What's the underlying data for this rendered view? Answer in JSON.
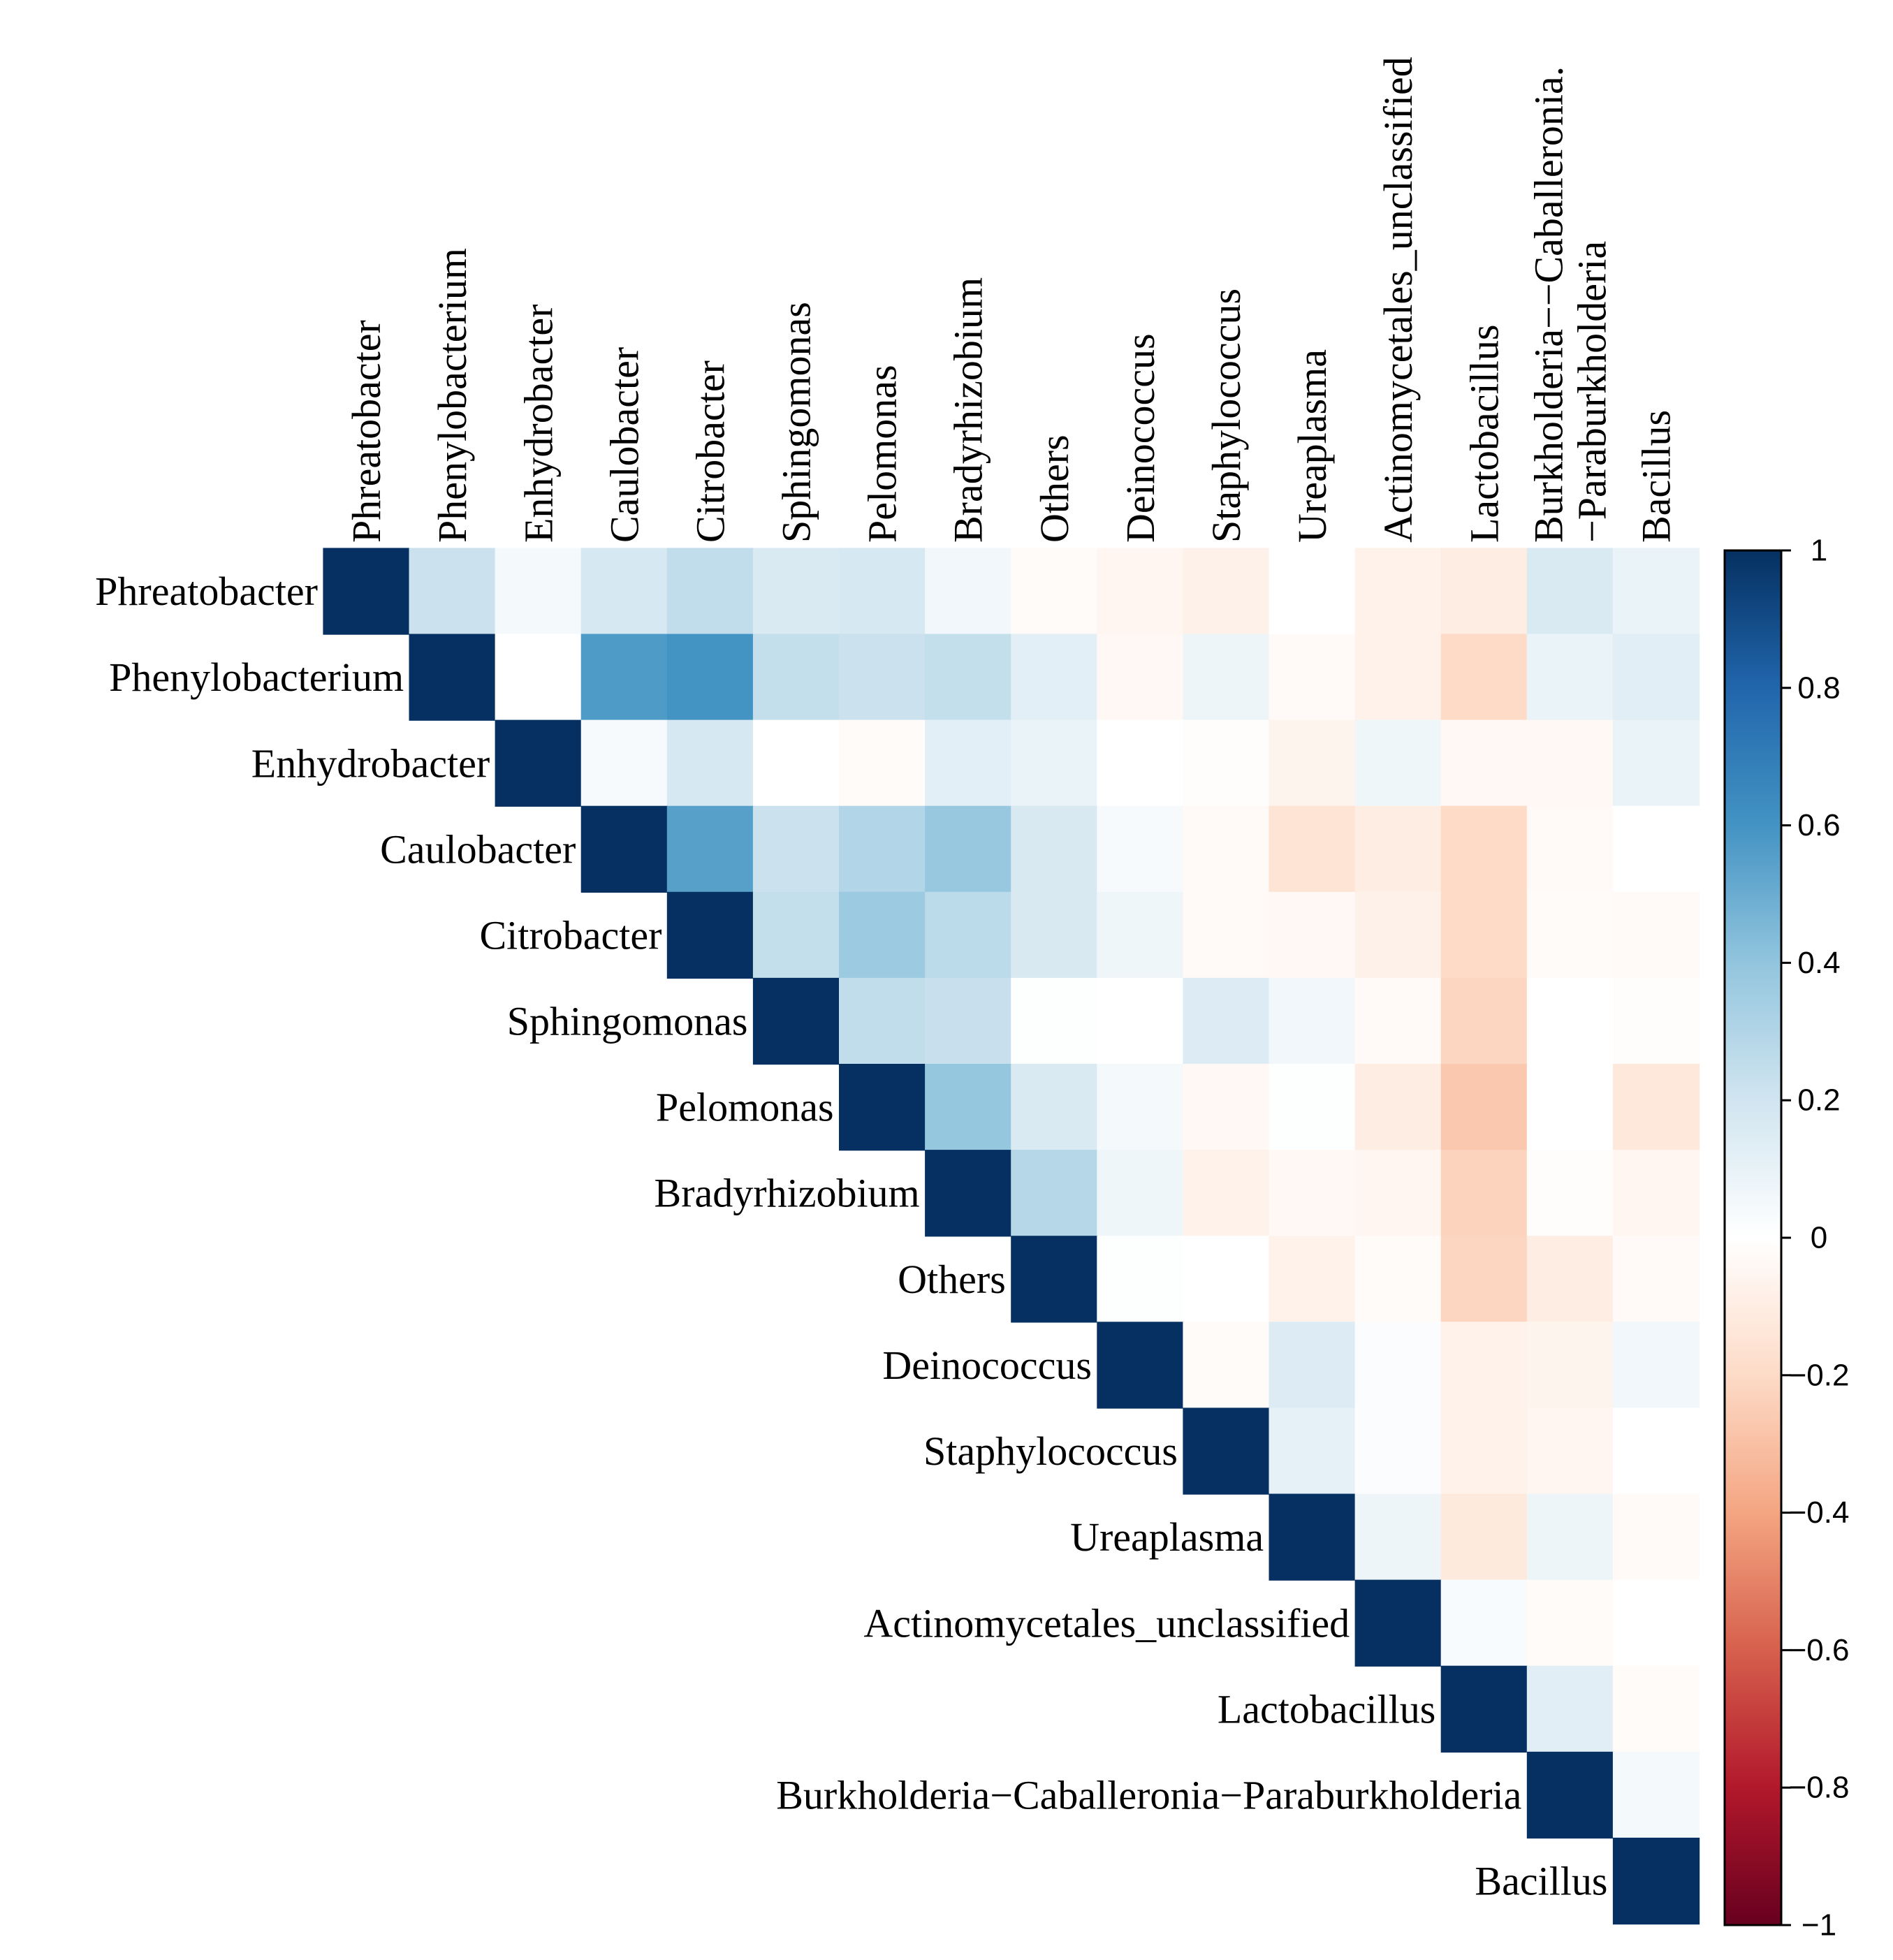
{
  "chart_data": {
    "type": "heatmap",
    "subtype": "correlation-upper-triangle",
    "row_labels": [
      "Phreatobacter",
      "Phenylobacterium",
      "Enhydrobacter",
      "Caulobacter",
      "Citrobacter",
      "Sphingomonas",
      "Pelomonas",
      "Bradyrhizobium",
      "Others",
      "Deinococcus",
      "Staphylococcus",
      "Ureaplasma",
      "Actinomycetales_unclassified",
      "Lactobacillus",
      "Burkholderia−Caballeronia−Paraburkholderia",
      "Bacillus"
    ],
    "col_labels": [
      "Phreatobacter",
      "Phenylobacterium",
      "Enhydrobacter",
      "Caulobacter",
      "Citrobacter",
      "Sphingomonas",
      "Pelomonas",
      "Bradyrhizobium",
      "Others",
      "Deinococcus",
      "Staphylococcus",
      "Ureaplasma",
      "Actinomycetales_unclassified",
      "Lactobacillus",
      "Burkholderia−−Caballeronia.\n−Paraburkholderia",
      "Bacillus"
    ],
    "matrix": [
      [
        1,
        0.22,
        0.05,
        0.18,
        0.25,
        0.16,
        0.18,
        0.06,
        -0.02,
        -0.05,
        -0.08,
        0,
        -0.07,
        -0.1,
        0.16,
        0.09
      ],
      [
        null,
        1,
        0,
        0.57,
        0.6,
        0.24,
        0.22,
        0.24,
        0.12,
        -0.04,
        0.08,
        -0.03,
        -0.07,
        -0.2,
        0.09,
        0.13
      ],
      [
        null,
        null,
        1,
        0.04,
        0.18,
        0,
        -0.02,
        0.12,
        0.09,
        0,
        -0.01,
        -0.06,
        0.07,
        -0.04,
        -0.04,
        0.09
      ],
      [
        null,
        null,
        null,
        1,
        0.55,
        0.22,
        0.3,
        0.38,
        0.17,
        0.04,
        -0.03,
        -0.15,
        -0.1,
        -0.2,
        -0.03,
        0
      ],
      [
        null,
        null,
        null,
        null,
        1,
        0.24,
        0.37,
        0.27,
        0.17,
        0.07,
        -0.03,
        -0.04,
        -0.08,
        -0.2,
        -0.02,
        -0.03
      ],
      [
        null,
        null,
        null,
        null,
        null,
        1,
        0.25,
        0.23,
        0.01,
        0,
        0.15,
        0.06,
        -0.03,
        -0.22,
        0,
        -0.01
      ],
      [
        null,
        null,
        null,
        null,
        null,
        null,
        1,
        0.39,
        0.16,
        0.05,
        -0.04,
        0.01,
        -0.1,
        -0.27,
        0,
        -0.13
      ],
      [
        null,
        null,
        null,
        null,
        null,
        null,
        null,
        1,
        0.29,
        0.07,
        -0.07,
        -0.04,
        -0.05,
        -0.23,
        -0.01,
        -0.05
      ],
      [
        null,
        null,
        null,
        null,
        null,
        null,
        null,
        null,
        1,
        0.01,
        0,
        -0.07,
        -0.02,
        -0.22,
        -0.1,
        -0.03
      ],
      [
        null,
        null,
        null,
        null,
        null,
        null,
        null,
        null,
        null,
        1,
        -0.02,
        0.15,
        0.02,
        -0.07,
        -0.06,
        0.06
      ],
      [
        null,
        null,
        null,
        null,
        null,
        null,
        null,
        null,
        null,
        null,
        1,
        0.11,
        0.02,
        -0.07,
        -0.05,
        0
      ],
      [
        null,
        null,
        null,
        null,
        null,
        null,
        null,
        null,
        null,
        null,
        null,
        1,
        0.08,
        -0.12,
        0.08,
        -0.03
      ],
      [
        null,
        null,
        null,
        null,
        null,
        null,
        null,
        null,
        null,
        null,
        null,
        null,
        1,
        0.03,
        -0.02,
        0
      ],
      [
        null,
        null,
        null,
        null,
        null,
        null,
        null,
        null,
        null,
        null,
        null,
        null,
        null,
        1,
        0.13,
        -0.02
      ],
      [
        null,
        null,
        null,
        null,
        null,
        null,
        null,
        null,
        null,
        null,
        null,
        null,
        null,
        null,
        1,
        0.05
      ],
      [
        null,
        null,
        null,
        null,
        null,
        null,
        null,
        null,
        null,
        null,
        null,
        null,
        null,
        null,
        null,
        1
      ]
    ],
    "color_range": [
      -1,
      1
    ],
    "colorbar_ticks": [
      "1",
      "0.8",
      "0.6",
      "0.4",
      "0.2",
      "0",
      "−0.2",
      "−0.4",
      "−0.6",
      "−0.8",
      "−1"
    ],
    "colorbar_tick_values": [
      1,
      0.8,
      0.6,
      0.4,
      0.2,
      0,
      -0.2,
      -0.4,
      -0.6,
      -0.8,
      -1
    ],
    "legend_position": "right",
    "color_stops": [
      {
        "v": -1.0,
        "c": "#67001F"
      },
      {
        "v": -0.8,
        "c": "#B2182B"
      },
      {
        "v": -0.6,
        "c": "#D6604D"
      },
      {
        "v": -0.4,
        "c": "#F4A582"
      },
      {
        "v": -0.2,
        "c": "#FDDBC7"
      },
      {
        "v": 0.0,
        "c": "#FFFFFF"
      },
      {
        "v": 0.2,
        "c": "#D1E5F0"
      },
      {
        "v": 0.4,
        "c": "#92C5DE"
      },
      {
        "v": 0.6,
        "c": "#4393C3"
      },
      {
        "v": 0.8,
        "c": "#2166AC"
      },
      {
        "v": 1.0,
        "c": "#053061"
      }
    ]
  }
}
